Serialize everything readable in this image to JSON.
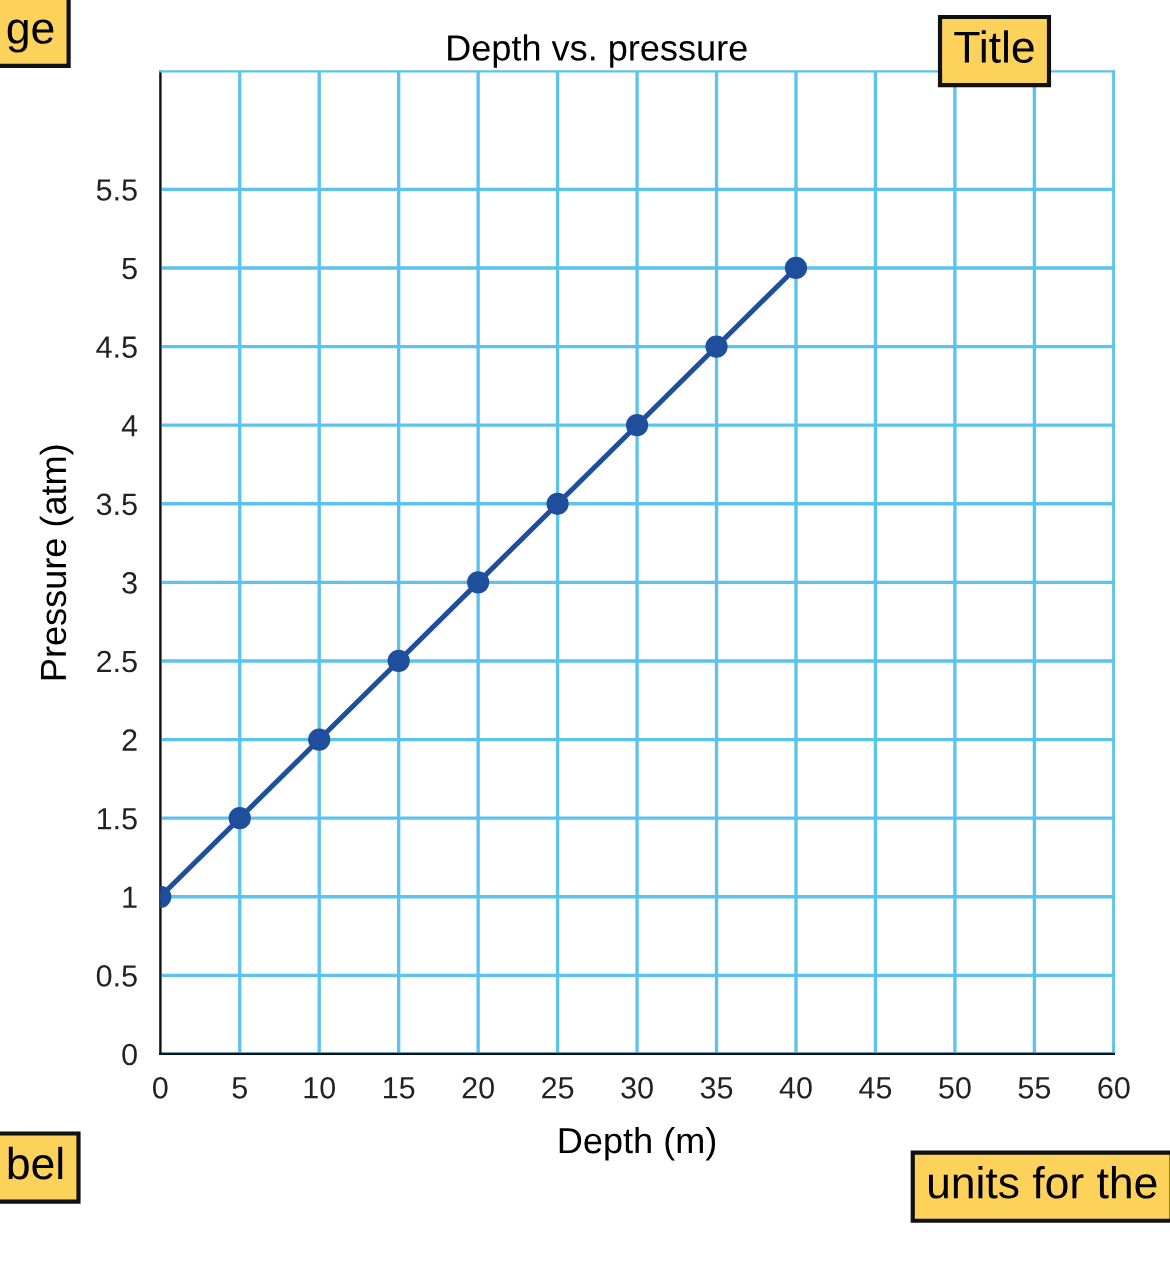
{
  "chart_data": {
    "type": "line",
    "title": "Depth vs. pressure",
    "xlabel": "Depth (m)",
    "ylabel": "Pressure (atm)",
    "x": [
      0,
      5,
      10,
      15,
      20,
      25,
      30,
      35,
      40
    ],
    "series": [
      {
        "color": "#1f4e9c",
        "values": [
          1,
          1.5,
          2,
          2.5,
          3,
          3.5,
          4,
          4.5,
          5
        ]
      }
    ],
    "marker": "circle",
    "line_style": "solid",
    "grid": true,
    "xlim": [
      0,
      60
    ],
    "xticks": [
      0,
      5,
      10,
      15,
      20,
      25,
      30,
      35,
      40,
      45,
      50,
      55,
      60
    ],
    "ylim": [
      0,
      6.25
    ],
    "yticks": [
      0,
      0.5,
      1,
      1.5,
      2,
      2.5,
      3,
      3.5,
      4,
      4.5,
      5,
      5.5
    ],
    "annotations": [
      "ge",
      "Title",
      "bel",
      "units for the"
    ]
  }
}
